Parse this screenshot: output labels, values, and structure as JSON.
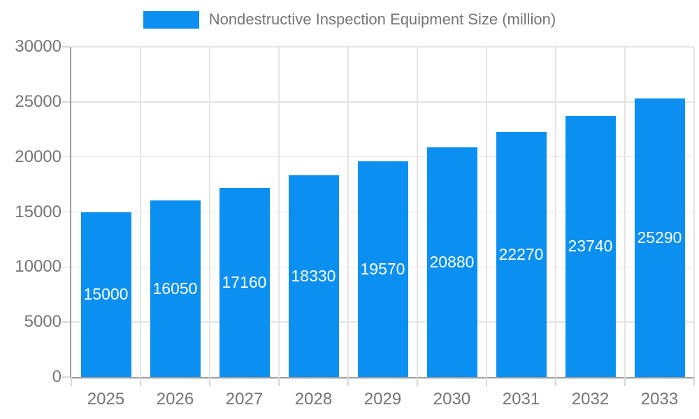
{
  "chart_data": {
    "type": "bar",
    "title": "Nondestructive Inspection Equipment Size (million)",
    "categories": [
      "2025",
      "2026",
      "2027",
      "2028",
      "2029",
      "2030",
      "2031",
      "2032",
      "2033"
    ],
    "values": [
      15000,
      16050,
      17160,
      18330,
      19570,
      20880,
      22270,
      23740,
      25290
    ],
    "xlabel": "",
    "ylabel": "",
    "ylim": [
      0,
      30000
    ],
    "yticks": [
      0,
      5000,
      10000,
      15000,
      20000,
      25000,
      30000
    ],
    "grid": true,
    "legend_position": "top-center",
    "bar_color": "#0b90f2",
    "bar_label_color": "#ffffff",
    "axis_text_color": "#757575",
    "grid_color": "#e4e4e4",
    "axis_line_color": "#9e9e9e",
    "tick_color": "#d6d6d6",
    "background": "#ffffff"
  }
}
